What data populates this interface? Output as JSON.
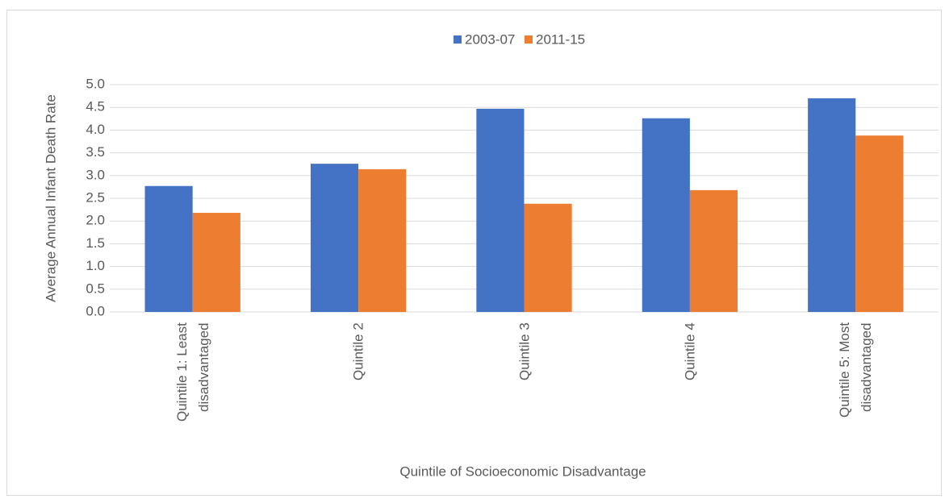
{
  "chart_data": {
    "type": "bar",
    "x_label": "Quintile of Socioeconomic Disadvantage",
    "y_label": "Average Annual Infant Death Rate",
    "categories": [
      "Quintile 1: Least disadvantaged",
      "Quintile 2",
      "Quintile 3",
      "Quintile 4",
      "Quintile 5: Most disadvantaged"
    ],
    "series": [
      {
        "name": "2003-07",
        "color": "#4472c4",
        "values": [
          2.77,
          3.26,
          4.47,
          4.26,
          4.7
        ]
      },
      {
        "name": "2011-15",
        "color": "#ed7d31",
        "values": [
          2.18,
          3.14,
          2.38,
          2.68,
          3.88
        ]
      }
    ],
    "ylim": [
      0,
      5
    ],
    "yticks": [
      {
        "value": 0,
        "label": "0.0"
      },
      0.5,
      {
        "value": 1,
        "label": "1.0"
      },
      1.5,
      {
        "value": 2,
        "label": "2.0"
      },
      2.5,
      {
        "value": 3,
        "label": "3.0"
      },
      3.5,
      {
        "value": 4,
        "label": "4.0"
      },
      4.5,
      {
        "value": 5,
        "label": "5.0"
      }
    ],
    "grid": true,
    "legend": "top"
  }
}
